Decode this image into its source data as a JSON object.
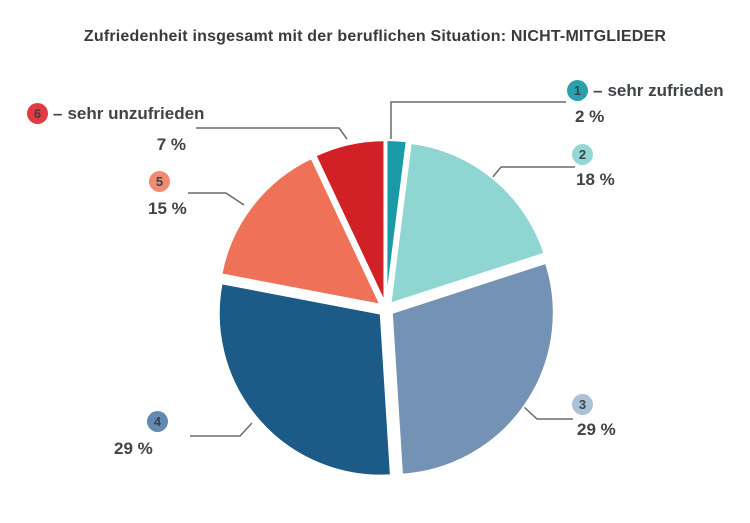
{
  "title": "Zufriedenheit insgesamt mit der beruflichen Situation: NICHT-MITGLIEDER",
  "chart_data": {
    "type": "pie",
    "title": "Zufriedenheit insgesamt mit der beruflichen Situation: NICHT-MITGLIEDER",
    "unit": "percent",
    "direction": "clockwise",
    "start_angle_deg": 0,
    "total": 100,
    "categories": [
      "1",
      "2",
      "3",
      "4",
      "5",
      "6"
    ],
    "values": [
      2,
      18,
      29,
      29,
      15,
      7
    ],
    "legend_dash": "–",
    "scale_min_label": "sehr zufrieden",
    "scale_max_label": "sehr unzufrieden",
    "slices": [
      {
        "number": "1",
        "scale_label": "sehr zufrieden",
        "pct_label": "2 %",
        "value": 2,
        "color": "#1a9aa6",
        "badge_color": "#2ba0ac"
      },
      {
        "number": "2",
        "scale_label": "",
        "pct_label": "18 %",
        "value": 18,
        "color": "#8fd5d1",
        "badge_color": "#93d8d4"
      },
      {
        "number": "3",
        "scale_label": "",
        "pct_label": "29 %",
        "value": 29,
        "color": "#7492b4",
        "badge_color": "#aac1d7"
      },
      {
        "number": "4",
        "scale_label": "",
        "pct_label": "29 %",
        "value": 29,
        "color": "#1c5a88",
        "badge_color": "#6189b1"
      },
      {
        "number": "5",
        "scale_label": "",
        "pct_label": "15 %",
        "value": 15,
        "color": "#ee7158",
        "badge_color": "#f08a70"
      },
      {
        "number": "6",
        "scale_label": "sehr unzufrieden",
        "pct_label": "7 %",
        "value": 7,
        "color": "#d22027",
        "badge_color": "#e23a41"
      }
    ],
    "leader_line_color": "#6a6a6a",
    "background": "#ffffff"
  }
}
